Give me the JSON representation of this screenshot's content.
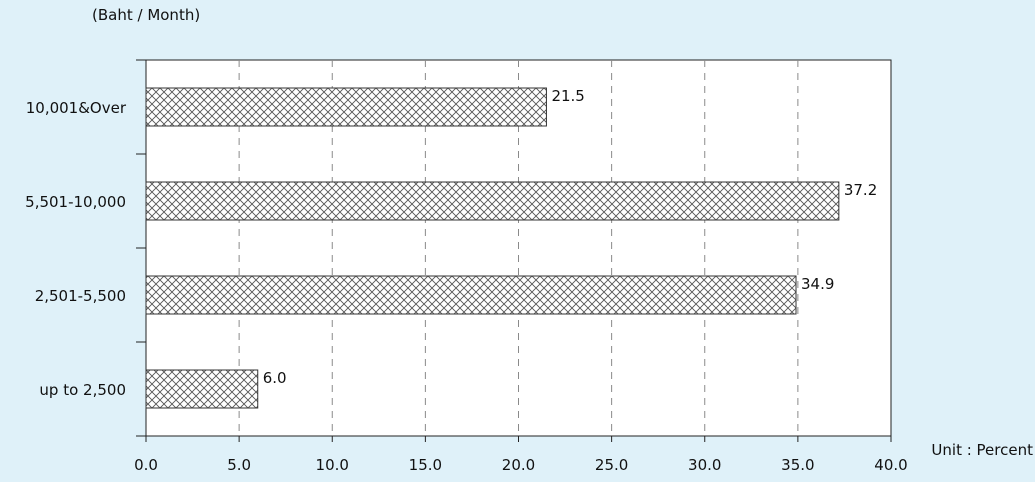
{
  "chart_data": {
    "type": "bar",
    "orientation": "horizontal",
    "subtitle": "(Baht / Month)",
    "unit_label": "Unit : Percent",
    "categories": [
      "10,001&Over",
      "5,501-10,000",
      "2,501-5,500",
      "up to 2,500"
    ],
    "values": [
      21.5,
      37.2,
      34.9,
      6.0
    ],
    "value_labels": [
      "21.5",
      "37.2",
      "34.9",
      "6.0"
    ],
    "xlim": [
      0,
      40
    ],
    "x_ticks": [
      "0.0",
      "5.0",
      "10.0",
      "15.0",
      "20.0",
      "25.0",
      "30.0",
      "35.0",
      "40.0"
    ],
    "grid": "vertical dashed",
    "bar_fill": "crosshatch",
    "colors": {
      "background": "#dff1f9",
      "plot_background": "#ffffff",
      "bar_hatch": "#444444",
      "grid": "#8a8a8a"
    }
  }
}
